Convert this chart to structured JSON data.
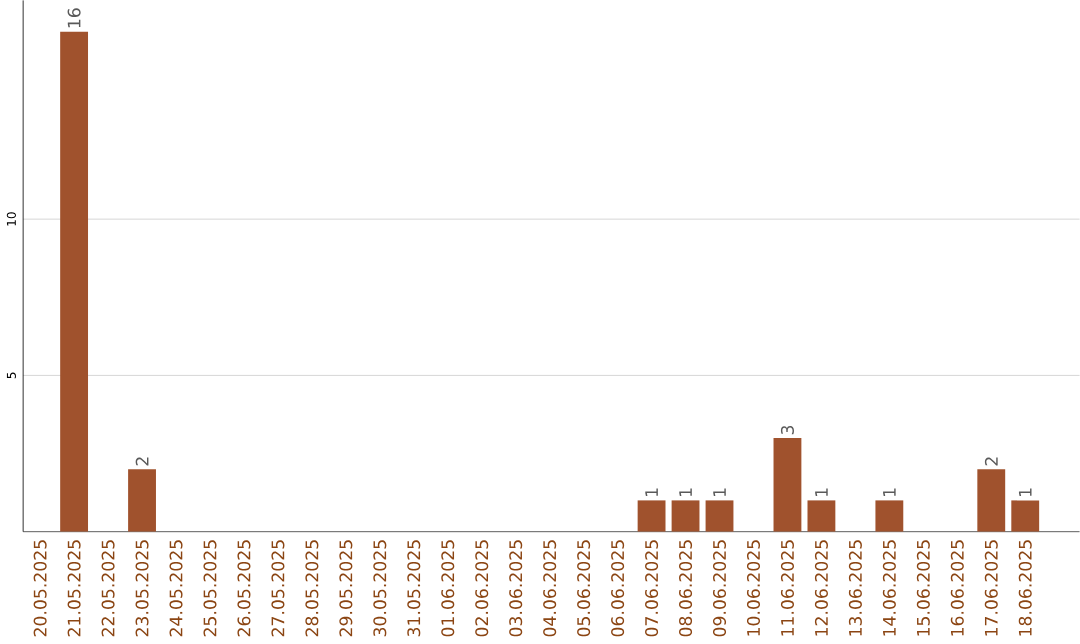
{
  "chart_data": {
    "type": "bar",
    "categories": [
      "20.05.2025",
      "21.05.2025",
      "22.05.2025",
      "23.05.2025",
      "24.05.2025",
      "25.05.2025",
      "26.05.2025",
      "27.05.2025",
      "28.05.2025",
      "29.05.2025",
      "30.05.2025",
      "31.05.2025",
      "01.06.2025",
      "02.06.2025",
      "03.06.2025",
      "04.06.2025",
      "05.06.2025",
      "06.06.2025",
      "07.06.2025",
      "08.06.2025",
      "09.06.2025",
      "10.06.2025",
      "11.06.2025",
      "12.06.2025",
      "13.06.2025",
      "14.06.2025",
      "15.06.2025",
      "16.06.2025",
      "17.06.2025",
      "18.06.2025"
    ],
    "values": [
      0,
      16,
      0,
      2,
      0,
      0,
      0,
      0,
      0,
      0,
      0,
      0,
      0,
      0,
      0,
      0,
      0,
      0,
      1,
      1,
      1,
      0,
      3,
      1,
      0,
      1,
      0,
      0,
      2,
      1
    ],
    "value_labels": [
      null,
      "16",
      null,
      "2",
      null,
      null,
      null,
      null,
      null,
      null,
      null,
      null,
      null,
      null,
      null,
      null,
      null,
      null,
      "1",
      "1",
      "1",
      null,
      "3",
      "1",
      null,
      "1",
      null,
      null,
      "2",
      "1"
    ],
    "color": "#a0522d",
    "ylim": [
      0,
      17
    ],
    "yticks": [
      5,
      10
    ],
    "grid": "y"
  }
}
